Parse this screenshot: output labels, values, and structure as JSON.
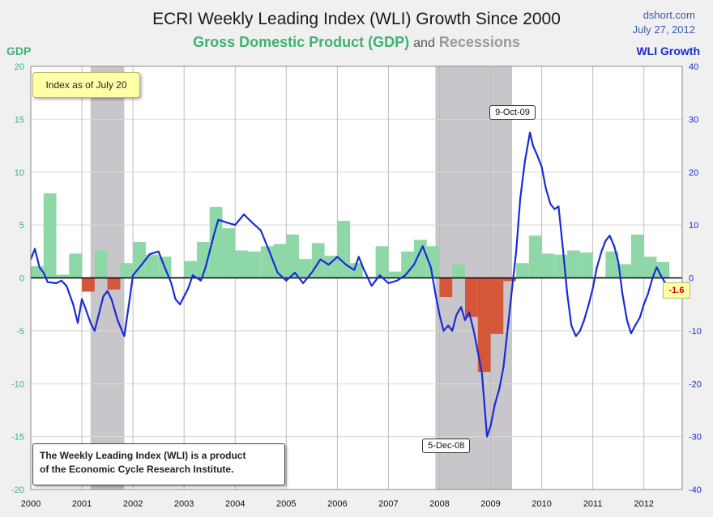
{
  "header": {
    "title": "ECRI Weekly Leading Index (WLI) Growth Since 2000",
    "subtitle_gdp": "Gross Domestic Product (GDP)",
    "subtitle_and": "and",
    "subtitle_recessions": "Recessions",
    "source": "dshort.com",
    "date": "July 27, 2012"
  },
  "axis_labels": {
    "left": "GDP",
    "right": "WLI Growth"
  },
  "notes": {
    "index_asof": "Index as of July 20",
    "wli_note_line1": "The Weekly Leading Index (WLI) is a product",
    "wli_note_line2": "of the Economic Cycle Research Institute.",
    "peak_label": "9-Oct-09",
    "trough_label": "5-Dec-08",
    "last_value": "-1.6"
  },
  "colors": {
    "gdp_positive": "#8ed8a8",
    "gdp_negative": "#d4573a",
    "recession": "#c8c6ca",
    "wli_line": "#1a2bd6",
    "plot_bg": "#ffffff"
  },
  "chart_data": {
    "type": "bar",
    "x_range": [
      2000,
      2012.75
    ],
    "x_ticks": [
      "2000",
      "2001",
      "2002",
      "2003",
      "2004",
      "2005",
      "2006",
      "2007",
      "2008",
      "2009",
      "2010",
      "2011",
      "2012"
    ],
    "gdp_ylim": [
      -20,
      20
    ],
    "gdp_ticks": [
      20,
      15,
      10,
      5,
      0,
      -5,
      -10,
      -15,
      -20
    ],
    "wli_ylim": [
      -40,
      40
    ],
    "wli_ticks": [
      40,
      30,
      20,
      10,
      0,
      -10,
      -20,
      -30,
      -40
    ],
    "recessions": [
      [
        2001.17,
        2001.83
      ],
      [
        2007.92,
        2009.42
      ]
    ],
    "gdp_quarterly": [
      1.1,
      8.0,
      0.3,
      2.3,
      -1.3,
      2.6,
      -1.1,
      1.4,
      3.4,
      2.2,
      2.0,
      0.1,
      1.6,
      3.4,
      6.7,
      4.7,
      2.6,
      2.5,
      3.0,
      3.2,
      4.1,
      1.8,
      3.3,
      2.1,
      5.4,
      1.4,
      0.1,
      3.0,
      0.6,
      2.5,
      3.6,
      3.0,
      -1.8,
      1.3,
      -3.7,
      -8.9,
      -5.3,
      -0.3,
      1.4,
      4.0,
      2.3,
      2.2,
      2.6,
      2.4,
      0.1,
      2.5,
      1.3,
      4.1,
      2.0,
      1.5
    ],
    "wli_series": [
      [
        2000.0,
        3.5
      ],
      [
        2000.08,
        5.5
      ],
      [
        2000.17,
        2.0
      ],
      [
        2000.25,
        1.0
      ],
      [
        2000.33,
        -0.8
      ],
      [
        2000.5,
        -1.0
      ],
      [
        2000.6,
        -0.5
      ],
      [
        2000.7,
        -1.5
      ],
      [
        2000.83,
        -5.0
      ],
      [
        2000.92,
        -8.5
      ],
      [
        2001.0,
        -4.0
      ],
      [
        2001.08,
        -6.0
      ],
      [
        2001.17,
        -8.5
      ],
      [
        2001.25,
        -10.0
      ],
      [
        2001.42,
        -3.5
      ],
      [
        2001.5,
        -2.5
      ],
      [
        2001.58,
        -4.0
      ],
      [
        2001.7,
        -8.0
      ],
      [
        2001.83,
        -11.0
      ],
      [
        2001.92,
        -5.0
      ],
      [
        2002.0,
        0.5
      ],
      [
        2002.17,
        2.5
      ],
      [
        2002.33,
        4.5
      ],
      [
        2002.5,
        5.0
      ],
      [
        2002.58,
        3.0
      ],
      [
        2002.75,
        -1.0
      ],
      [
        2002.83,
        -4.0
      ],
      [
        2002.92,
        -5.0
      ],
      [
        2003.08,
        -2.0
      ],
      [
        2003.17,
        0.5
      ],
      [
        2003.33,
        -0.5
      ],
      [
        2003.42,
        2.0
      ],
      [
        2003.58,
        8.0
      ],
      [
        2003.67,
        11.0
      ],
      [
        2003.83,
        10.5
      ],
      [
        2004.0,
        10.0
      ],
      [
        2004.17,
        12.0
      ],
      [
        2004.33,
        10.5
      ],
      [
        2004.5,
        9.0
      ],
      [
        2004.67,
        5.0
      ],
      [
        2004.83,
        1.0
      ],
      [
        2005.0,
        -0.5
      ],
      [
        2005.17,
        1.0
      ],
      [
        2005.33,
        -1.0
      ],
      [
        2005.5,
        1.0
      ],
      [
        2005.67,
        3.5
      ],
      [
        2005.83,
        2.5
      ],
      [
        2006.0,
        4.0
      ],
      [
        2006.17,
        2.5
      ],
      [
        2006.33,
        1.5
      ],
      [
        2006.42,
        4.0
      ],
      [
        2006.5,
        2.0
      ],
      [
        2006.67,
        -1.5
      ],
      [
        2006.83,
        0.5
      ],
      [
        2007.0,
        -1.0
      ],
      [
        2007.17,
        -0.5
      ],
      [
        2007.33,
        0.5
      ],
      [
        2007.5,
        2.5
      ],
      [
        2007.67,
        6.0
      ],
      [
        2007.83,
        2.0
      ],
      [
        2007.92,
        -3.0
      ],
      [
        2008.0,
        -7.0
      ],
      [
        2008.08,
        -10.0
      ],
      [
        2008.17,
        -9.0
      ],
      [
        2008.25,
        -10.0
      ],
      [
        2008.33,
        -7.0
      ],
      [
        2008.42,
        -5.5
      ],
      [
        2008.5,
        -8.0
      ],
      [
        2008.58,
        -6.5
      ],
      [
        2008.67,
        -10.0
      ],
      [
        2008.75,
        -14.0
      ],
      [
        2008.83,
        -18.0
      ],
      [
        2008.93,
        -30.0
      ],
      [
        2009.0,
        -28.0
      ],
      [
        2009.08,
        -24.0
      ],
      [
        2009.17,
        -21.0
      ],
      [
        2009.25,
        -17.0
      ],
      [
        2009.33,
        -10.0
      ],
      [
        2009.42,
        -2.0
      ],
      [
        2009.5,
        5.0
      ],
      [
        2009.58,
        15.0
      ],
      [
        2009.67,
        22.0
      ],
      [
        2009.77,
        27.5
      ],
      [
        2009.83,
        25.0
      ],
      [
        2009.92,
        23.0
      ],
      [
        2010.0,
        21.0
      ],
      [
        2010.08,
        17.0
      ],
      [
        2010.17,
        14.0
      ],
      [
        2010.25,
        13.0
      ],
      [
        2010.33,
        13.5
      ],
      [
        2010.42,
        5.0
      ],
      [
        2010.5,
        -3.0
      ],
      [
        2010.58,
        -9.0
      ],
      [
        2010.67,
        -11.0
      ],
      [
        2010.75,
        -10.0
      ],
      [
        2010.83,
        -8.0
      ],
      [
        2010.92,
        -5.0
      ],
      [
        2011.0,
        -2.0
      ],
      [
        2011.08,
        2.0
      ],
      [
        2011.17,
        5.0
      ],
      [
        2011.25,
        7.0
      ],
      [
        2011.33,
        8.0
      ],
      [
        2011.42,
        6.0
      ],
      [
        2011.5,
        3.0
      ],
      [
        2011.58,
        -3.0
      ],
      [
        2011.67,
        -8.0
      ],
      [
        2011.75,
        -10.5
      ],
      [
        2011.83,
        -9.0
      ],
      [
        2011.92,
        -7.5
      ],
      [
        2012.0,
        -5.0
      ],
      [
        2012.08,
        -3.0
      ],
      [
        2012.17,
        0.0
      ],
      [
        2012.25,
        2.0
      ],
      [
        2012.33,
        0.5
      ],
      [
        2012.42,
        -1.0
      ],
      [
        2012.5,
        -3.5
      ],
      [
        2012.58,
        -2.0
      ],
      [
        2012.62,
        -1.6
      ]
    ]
  }
}
